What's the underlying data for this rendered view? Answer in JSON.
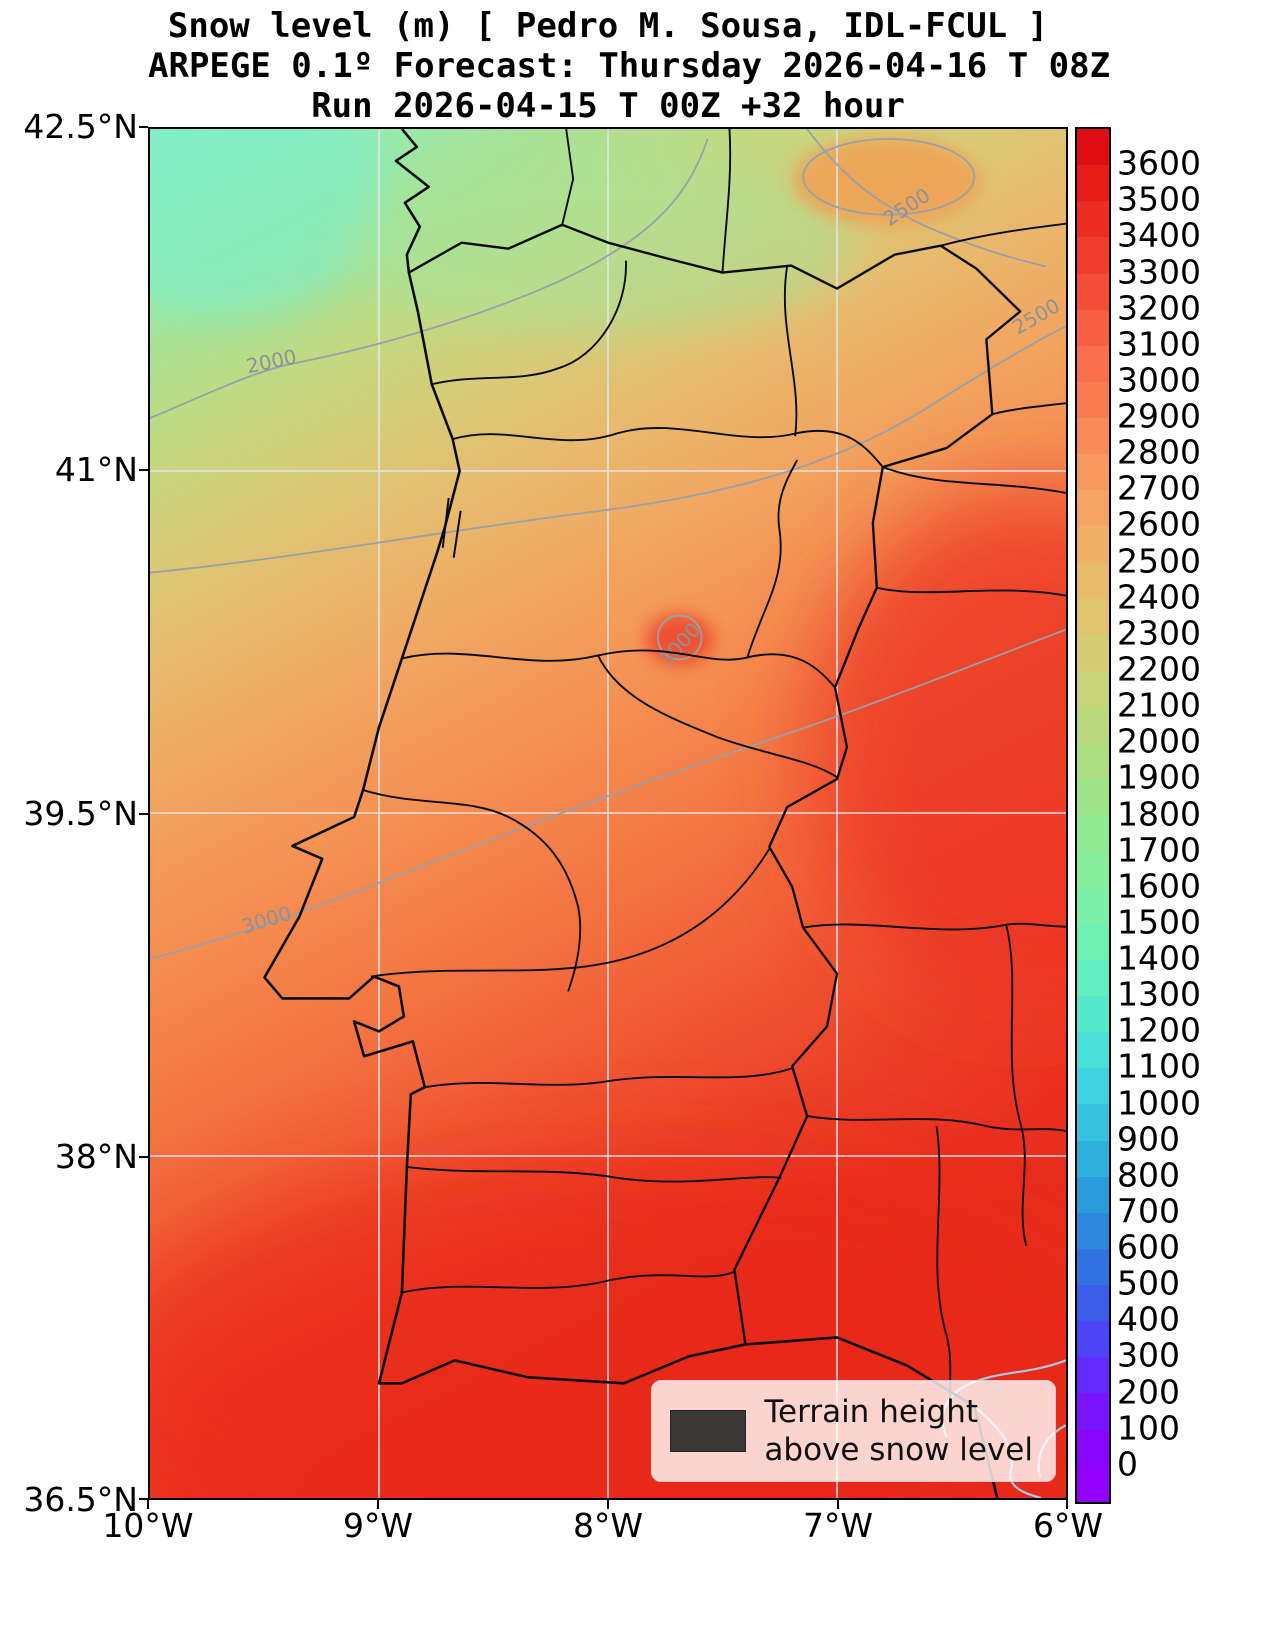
{
  "titles": {
    "line1": "Snow level (m) [ Pedro M. Sousa, IDL-FCUL ]",
    "line2": "ARPEGE 0.1º Forecast: Thursday 2026-04-16 T 08Z",
    "line3": "Run 2026-04-15 T 00Z +32 hour"
  },
  "axes": {
    "y_ticks": [
      "42.5°N",
      "41°N",
      "39.5°N",
      "38°N",
      "36.5°N"
    ],
    "x_ticks": [
      "10°W",
      "9°W",
      "8°W",
      "7°W",
      "6°W"
    ]
  },
  "colorbar": {
    "tick_labels": [
      "3600",
      "3500",
      "3400",
      "3300",
      "3200",
      "3100",
      "3000",
      "2900",
      "2800",
      "2700",
      "2600",
      "2500",
      "2400",
      "2300",
      "2200",
      "2100",
      "2000",
      "1900",
      "1800",
      "1700",
      "1600",
      "1500",
      "1400",
      "1300",
      "1200",
      "1100",
      "1000",
      "900",
      "800",
      "700",
      "600",
      "500",
      "400",
      "300",
      "200",
      "100",
      "0"
    ],
    "cell_colors_top_to_bottom": [
      "#e00d12",
      "#e81c18",
      "#ee2d22",
      "#f23d2c",
      "#f54e38",
      "#f75e42",
      "#f96e4b",
      "#fa7d52",
      "#f98b58",
      "#f7985e",
      "#f4a463",
      "#efb068",
      "#e8ba6c",
      "#e0c470",
      "#d6cc74",
      "#cad478",
      "#bcda7d",
      "#aee083",
      "#a0e48a",
      "#92ea93",
      "#86ee9d",
      "#7af0a8",
      "#6ef0b4",
      "#62eec0",
      "#56e8cc",
      "#4adfd9",
      "#40d2e0",
      "#36c2de",
      "#2db0dc",
      "#2a9cdb",
      "#2b88dc",
      "#2f72e0",
      "#3b5ce9",
      "#4e44f5",
      "#642bff",
      "#7a14ff",
      "#8b06ff",
      "#9400ff"
    ]
  },
  "legend": {
    "line1": "Terrain height",
    "line2": "above snow level",
    "swatch_color": "#3b3838"
  },
  "contours": {
    "levels": [
      2000,
      2500,
      3000
    ],
    "labels": [
      {
        "text": "2000"
      },
      {
        "text": "2500"
      },
      {
        "text": "2500"
      },
      {
        "text": "3000"
      },
      {
        "text": "3000"
      }
    ],
    "line_color": "#9aa0a6"
  },
  "chart_data": {
    "type": "heatmap",
    "title": "Snow level (m) [ Pedro M. Sousa, IDL-FCUL ]",
    "subtitle": "ARPEGE 0.1º Forecast: Thursday 2026-04-16 T 08Z",
    "run_info": "Run 2026-04-15 T 00Z +32 hour",
    "variable": "snow level",
    "units": "m",
    "x_axis": {
      "ticks": [
        "10°W",
        "9°W",
        "8°W",
        "7°W",
        "6°W"
      ],
      "range_deg_west": [
        10,
        6
      ]
    },
    "y_axis": {
      "ticks": [
        "42.5°N",
        "41°N",
        "39.5°N",
        "38°N",
        "36.5°N"
      ],
      "range_deg_north": [
        36.5,
        42.5
      ]
    },
    "colorbar_range": {
      "min": 0,
      "max": 3600,
      "step": 100
    },
    "labeled_contours_m": [
      2000,
      2500,
      3000
    ],
    "legend_note": "Terrain height above snow level",
    "grid_estimate": {
      "lons_deg_west": [
        10,
        9,
        8,
        7,
        6
      ],
      "lats_deg_north": [
        42.5,
        41,
        39.5,
        38,
        36.5
      ],
      "snow_level_m": [
        [
          1900,
          2050,
          2300,
          2550,
          2650
        ],
        [
          2150,
          2300,
          2500,
          2750,
          2950
        ],
        [
          2700,
          2850,
          2950,
          3100,
          3250
        ],
        [
          3000,
          3050,
          3150,
          3250,
          3300
        ],
        [
          3100,
          3150,
          3250,
          3300,
          3350
        ]
      ]
    },
    "pattern": "Snow level increases from ~1900 m in the NW (Galicia, teal/green) to >3300 m in the S/SE (red); isolines slope upward toward the NE."
  }
}
